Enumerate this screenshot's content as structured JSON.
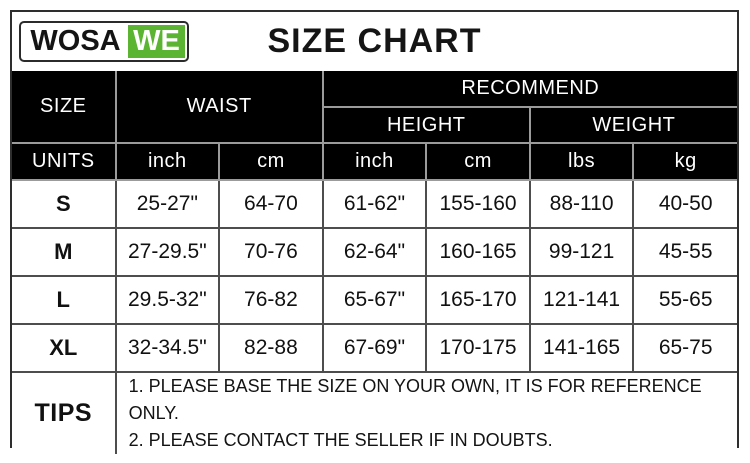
{
  "logo": {
    "text_black": "WOSA",
    "text_green": "WE"
  },
  "title": "SIZE CHART",
  "table": {
    "header": {
      "size": "SIZE",
      "waist": "WAIST",
      "recommend": "RECOMMEND",
      "height": "HEIGHT",
      "weight": "WEIGHT",
      "units_label": "UNITS",
      "units": {
        "waist_inch": "inch",
        "waist_cm": "cm",
        "height_inch": "inch",
        "height_cm": "cm",
        "weight_lbs": "lbs",
        "weight_kg": "kg"
      }
    },
    "rows": [
      {
        "size": "S",
        "waist_inch": "25-27\"",
        "waist_cm": "64-70",
        "height_inch": "61-62\"",
        "height_cm": "155-160",
        "weight_lbs": "88-110",
        "weight_kg": "40-50"
      },
      {
        "size": "M",
        "waist_inch": "27-29.5\"",
        "waist_cm": "70-76",
        "height_inch": "62-64\"",
        "height_cm": "160-165",
        "weight_lbs": "99-121",
        "weight_kg": "45-55"
      },
      {
        "size": "L",
        "waist_inch": "29.5-32\"",
        "waist_cm": "76-82",
        "height_inch": "65-67\"",
        "height_cm": "165-170",
        "weight_lbs": "121-141",
        "weight_kg": "55-65"
      },
      {
        "size": "XL",
        "waist_inch": "32-34.5\"",
        "waist_cm": "82-88",
        "height_inch": "67-69\"",
        "height_cm": "170-175",
        "weight_lbs": "141-165",
        "weight_kg": "65-75"
      }
    ],
    "tips": {
      "label": "TIPS",
      "line1": "1. PLEASE BASE THE SIZE ON YOUR OWN, IT IS FOR REFERENCE ONLY.",
      "line2": "2. PLEASE CONTACT THE SELLER IF IN DOUBTS."
    }
  },
  "colors": {
    "brand_green": "#5bb532",
    "header_bg": "#000000",
    "header_text": "#ffffff",
    "header_grid": "#9b9b9b",
    "body_grid": "#4d4d4d",
    "outer_border": "#2e2e2e",
    "text": "#111111"
  },
  "chart_data": {
    "type": "table",
    "title": "SIZE CHART",
    "columns": [
      "SIZE",
      "WAIST inch",
      "WAIST cm",
      "HEIGHT inch",
      "HEIGHT cm",
      "WEIGHT lbs",
      "WEIGHT kg"
    ],
    "rows": [
      [
        "S",
        "25-27\"",
        "64-70",
        "61-62\"",
        "155-160",
        "88-110",
        "40-50"
      ],
      [
        "M",
        "27-29.5\"",
        "70-76",
        "62-64\"",
        "160-165",
        "99-121",
        "45-55"
      ],
      [
        "L",
        "29.5-32\"",
        "76-82",
        "65-67\"",
        "165-170",
        "121-141",
        "55-65"
      ],
      [
        "XL",
        "32-34.5\"",
        "82-88",
        "67-69\"",
        "170-175",
        "141-165",
        "65-75"
      ]
    ],
    "notes": [
      "1. PLEASE BASE THE SIZE ON YOUR OWN, IT IS FOR REFERENCE ONLY.",
      "2. PLEASE CONTACT THE SELLER IF IN DOUBTS."
    ]
  }
}
